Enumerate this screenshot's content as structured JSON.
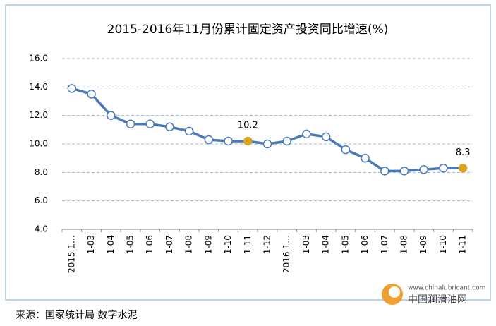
{
  "chart_data": {
    "type": "line",
    "title": "2015-2016年11月份累计固定资产投资同比增速(%)",
    "categories": [
      "2015.1…",
      "1-03",
      "1-04",
      "1-05",
      "1-06",
      "1-07",
      "1-08",
      "1-09",
      "1-10",
      "1-11",
      "1-12",
      "2016.1…",
      "1-03",
      "1-04",
      "1-05",
      "1-06",
      "1-07",
      "1-08",
      "1-09",
      "1-10",
      "1-11"
    ],
    "values": [
      13.9,
      13.5,
      12.0,
      11.4,
      11.4,
      11.2,
      10.9,
      10.3,
      10.2,
      10.2,
      10.0,
      10.2,
      10.7,
      10.5,
      9.6,
      9.0,
      8.1,
      8.1,
      8.2,
      8.3,
      8.3
    ],
    "color": "#4a7ab5",
    "highlight_indices": [
      9,
      20
    ],
    "highlight_color": "#d9a521",
    "ylim": [
      4,
      16
    ],
    "yticks": [
      {
        "value": 4,
        "label": "4.0"
      },
      {
        "value": 6,
        "label": "6.0"
      },
      {
        "value": 8,
        "label": "8.0"
      },
      {
        "value": 10,
        "label": "10.0"
      },
      {
        "value": 12,
        "label": "12.0"
      },
      {
        "value": 14,
        "label": "14.0"
      },
      {
        "value": 16,
        "label": "16.0"
      }
    ],
    "grid": true,
    "source": "来源：国家统计局  数字水泥",
    "logo_url": "www.chinalubricant.com",
    "logo_name": "中国润滑油网"
  }
}
